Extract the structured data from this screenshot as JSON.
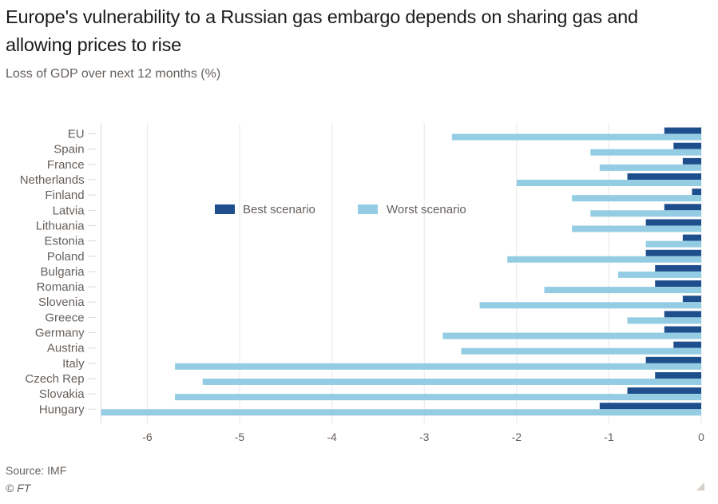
{
  "header": {
    "title": "Europe's vulnerability to a Russian gas embargo depends on sharing gas and allowing prices to rise",
    "subtitle": "Loss of GDP over next 12 months (%)"
  },
  "footer": {
    "source": "Source: IMF",
    "copyright": "© FT"
  },
  "colors": {
    "best": "#1f4e8c",
    "worst": "#94cde3",
    "grid": "#e8e8e8",
    "text": "#66605c"
  },
  "chart_data": {
    "type": "bar",
    "orientation": "horizontal",
    "title": "Europe's vulnerability to a Russian gas embargo depends on sharing gas and allowing prices to rise",
    "subtitle": "Loss of GDP over next 12 months (%)",
    "xlabel": "",
    "ylabel": "",
    "xlim": [
      -6.5,
      0
    ],
    "xticks": [
      -6,
      -5,
      -4,
      -3,
      -2,
      -1,
      0
    ],
    "grid": true,
    "legend_position": "top-center",
    "categories": [
      "EU",
      "Spain",
      "France",
      "Netherlands",
      "Finland",
      "Latvia",
      "Lithuania",
      "Estonia",
      "Poland",
      "Bulgaria",
      "Romania",
      "Slovenia",
      "Greece",
      "Germany",
      "Austria",
      "Italy",
      "Czech Rep",
      "Slovakia",
      "Hungary"
    ],
    "series": [
      {
        "name": "Best scenario",
        "values": [
          -0.4,
          -0.3,
          -0.2,
          -0.8,
          -0.1,
          -0.4,
          -0.6,
          -0.2,
          -0.6,
          -0.5,
          -0.5,
          -0.2,
          -0.4,
          -0.4,
          -0.3,
          -0.6,
          -0.5,
          -0.8,
          -1.1
        ]
      },
      {
        "name": "Worst scenario",
        "values": [
          -2.7,
          -1.2,
          -1.1,
          -2.0,
          -1.4,
          -1.2,
          -1.4,
          -0.6,
          -2.1,
          -0.9,
          -1.7,
          -2.4,
          -0.8,
          -2.8,
          -2.6,
          -5.7,
          -5.4,
          -5.7,
          -6.5
        ]
      }
    ],
    "source": "Source: IMF"
  }
}
